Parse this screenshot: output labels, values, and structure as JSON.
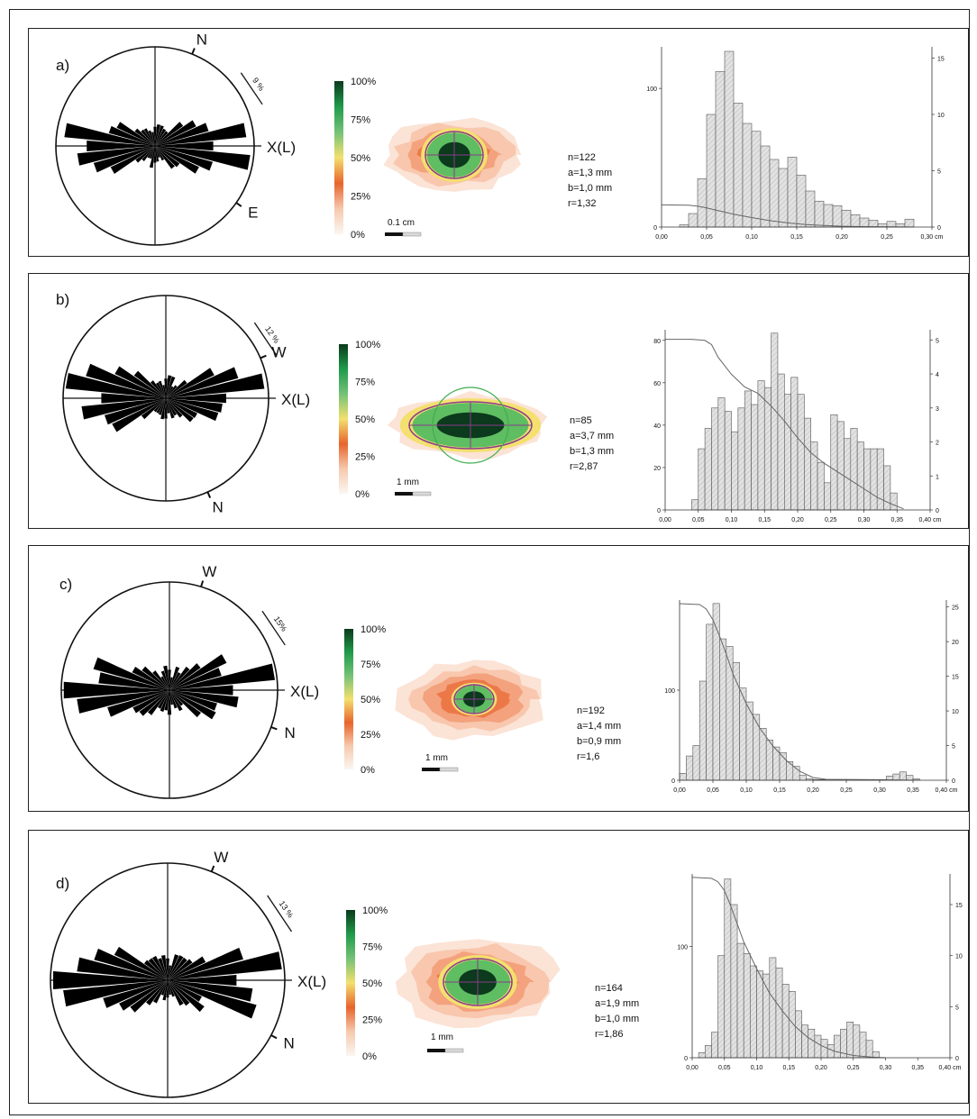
{
  "colors": {
    "ink": "#111111",
    "rose_fill": "#000000",
    "hist_fill": "#e2e2e2",
    "colorbar": [
      "#fbf6f2",
      "#f6c9ad",
      "#e8642d",
      "#f3e06e",
      "#74c277",
      "#1f9b4a",
      "#0b3a1c"
    ],
    "ellipse": "#8a3c8c",
    "circle": "#3fae4e"
  },
  "panels": [
    {
      "id": "a",
      "label": "a)",
      "rose": {
        "percent_label": "9 %",
        "axis_label": "X(L)",
        "dir_labels": [
          {
            "text": "N",
            "angle": 22
          },
          {
            "text": "E",
            "angle": 125
          }
        ]
      },
      "colorbar_labels": [
        "100%",
        "75%",
        "50%",
        "25%",
        "0%"
      ],
      "scale_label": "0.1 cm",
      "stats": [
        "n=122",
        "a=1,3 mm",
        "b=1,0 mm",
        "r=1,32"
      ],
      "chart_data": {
        "type": "bar",
        "xlabel": "cm",
        "x_ticks": [
          "0,00",
          "0,05",
          "0,10",
          "0,15",
          "0,20",
          "0,25",
          "0,30 cm"
        ],
        "x_range": [
          0,
          0.3
        ],
        "left_axis_ticks": [
          "0",
          "100"
        ],
        "left_range": [
          0,
          130
        ],
        "right_axis_ticks": [
          "0",
          "5",
          "10",
          "15"
        ],
        "right_range": [
          0,
          16
        ],
        "bin_width": 0.01,
        "bin_starts": [
          0.02,
          0.03,
          0.04,
          0.05,
          0.06,
          0.07,
          0.08,
          0.09,
          0.1,
          0.11,
          0.12,
          0.13,
          0.14,
          0.15,
          0.16,
          0.17,
          0.18,
          0.19,
          0.2,
          0.21,
          0.22,
          0.23,
          0.24,
          0.25,
          0.26,
          0.27
        ],
        "values": [
          0.2,
          1.2,
          4.3,
          10,
          13.8,
          15.6,
          11,
          9.2,
          8.5,
          7.2,
          6,
          5.2,
          6.2,
          4.6,
          3.2,
          2.3,
          2,
          1.9,
          1.5,
          1.1,
          0.8,
          0.6,
          0.3,
          0.5,
          0.3,
          0.7
        ],
        "curve": [
          [
            0.0,
            16
          ],
          [
            0.03,
            15.8
          ],
          [
            0.04,
            15
          ],
          [
            0.05,
            13.8
          ],
          [
            0.06,
            12.3
          ],
          [
            0.07,
            10.8
          ],
          [
            0.08,
            9.2
          ],
          [
            0.1,
            6.8
          ],
          [
            0.12,
            4.6
          ],
          [
            0.14,
            3.0
          ],
          [
            0.16,
            1.8
          ],
          [
            0.18,
            1.1
          ],
          [
            0.2,
            0.6
          ],
          [
            0.22,
            0.3
          ],
          [
            0.25,
            0.1
          ],
          [
            0.28,
            0.0
          ]
        ]
      }
    },
    {
      "id": "b",
      "label": "b)",
      "rose": {
        "percent_label": "12 %",
        "axis_label": "X(L)",
        "dir_labels": [
          {
            "text": "W",
            "angle": 67
          },
          {
            "text": "N",
            "angle": 156
          }
        ]
      },
      "colorbar_labels": [
        "100%",
        "75%",
        "50%",
        "25%",
        "0%"
      ],
      "scale_label": "1 mm",
      "stats": [
        "n=85",
        "a=3,7 mm",
        "b=1,3 mm",
        "r=2,87"
      ],
      "chart_data": {
        "type": "bar",
        "xlabel": "cm",
        "x_ticks": [
          "0,00",
          "0,05",
          "0,10",
          "0,15",
          "0,20",
          "0,25",
          "0,30",
          "0,35",
          "0,40 cm"
        ],
        "x_range": [
          0,
          0.4
        ],
        "left_axis_ticks": [
          "0",
          "20",
          "40",
          "60",
          "80"
        ],
        "left_range": [
          0,
          85
        ],
        "right_axis_ticks": [
          "0",
          "1",
          "2",
          "3",
          "4",
          "5"
        ],
        "right_range": [
          0,
          5.3
        ],
        "bin_width": 0.01,
        "bin_starts": [
          0.04,
          0.05,
          0.06,
          0.07,
          0.08,
          0.09,
          0.1,
          0.11,
          0.12,
          0.13,
          0.14,
          0.15,
          0.16,
          0.17,
          0.18,
          0.19,
          0.2,
          0.21,
          0.22,
          0.23,
          0.24,
          0.25,
          0.26,
          0.27,
          0.28,
          0.29,
          0.3,
          0.31,
          0.32,
          0.33,
          0.34
        ],
        "values": [
          0.3,
          1.8,
          2.4,
          3.0,
          3.3,
          2.9,
          2.3,
          3.0,
          3.5,
          3.1,
          3.8,
          3.6,
          5.2,
          4.0,
          3.4,
          3.9,
          3.4,
          2.7,
          2.0,
          1.4,
          0.8,
          2.8,
          2.6,
          2.1,
          2.4,
          2.0,
          1.8,
          1.8,
          1.8,
          1.3,
          0.5
        ],
        "curve": [
          [
            0.0,
            80.5
          ],
          [
            0.04,
            80.5
          ],
          [
            0.06,
            80
          ],
          [
            0.07,
            78
          ],
          [
            0.08,
            72
          ],
          [
            0.1,
            64
          ],
          [
            0.12,
            58
          ],
          [
            0.14,
            55
          ],
          [
            0.16,
            49
          ],
          [
            0.18,
            42
          ],
          [
            0.2,
            34
          ],
          [
            0.22,
            27
          ],
          [
            0.24,
            22
          ],
          [
            0.26,
            18
          ],
          [
            0.28,
            14
          ],
          [
            0.3,
            10
          ],
          [
            0.32,
            6
          ],
          [
            0.34,
            3
          ],
          [
            0.36,
            0.5
          ]
        ]
      }
    },
    {
      "id": "c",
      "label": "c)",
      "rose": {
        "percent_label": "15%",
        "axis_label": "X(L)",
        "dir_labels": [
          {
            "text": "W",
            "angle": 17
          },
          {
            "text": "N",
            "angle": 110
          }
        ]
      },
      "colorbar_labels": [
        "100%",
        "75%",
        "50%",
        "25%",
        "0%"
      ],
      "scale_label": "1 mm",
      "stats": [
        "n=192",
        "a=1,4 mm",
        "b=0,9 mm",
        "r=1,6"
      ],
      "chart_data": {
        "type": "bar",
        "xlabel": "cm",
        "x_ticks": [
          "0,00",
          "0,05",
          "0,10",
          "0,15",
          "0,20",
          "0,25",
          "0,30",
          "0,35",
          "0,40 cm"
        ],
        "x_range": [
          0,
          0.4
        ],
        "left_axis_ticks": [
          "0",
          "100"
        ],
        "left_range": [
          0,
          200
        ],
        "right_axis_ticks": [
          "0",
          "5",
          "10",
          "15",
          "20",
          "25"
        ],
        "right_range": [
          0,
          26
        ],
        "bin_width": 0.01,
        "bin_starts": [
          0.0,
          0.01,
          0.02,
          0.03,
          0.04,
          0.05,
          0.06,
          0.07,
          0.08,
          0.09,
          0.1,
          0.11,
          0.12,
          0.13,
          0.14,
          0.15,
          0.16,
          0.17,
          0.18,
          0.19,
          0.2,
          0.21,
          0.22,
          0.23,
          0.24,
          0.25,
          0.26,
          0.27,
          0.28,
          0.29,
          0.3,
          0.31,
          0.32,
          0.33,
          0.34,
          0.35
        ],
        "values": [
          1,
          3.5,
          5,
          14.3,
          22.5,
          25.5,
          20.4,
          19.3,
          17,
          13.3,
          11.3,
          9.5,
          7.5,
          5.8,
          4.8,
          4,
          2.7,
          2,
          0.7,
          0.2,
          0.1,
          0.1,
          0.1,
          0.1,
          0.1,
          0.1,
          0.1,
          0.1,
          0.1,
          0.1,
          0.1,
          0.6,
          0.9,
          1.2,
          0.7,
          0.2
        ],
        "curve": [
          [
            0.0,
            196
          ],
          [
            0.03,
            195
          ],
          [
            0.04,
            190
          ],
          [
            0.05,
            178
          ],
          [
            0.06,
            160
          ],
          [
            0.07,
            140
          ],
          [
            0.08,
            118
          ],
          [
            0.1,
            85
          ],
          [
            0.12,
            58
          ],
          [
            0.14,
            38
          ],
          [
            0.16,
            22
          ],
          [
            0.18,
            10
          ],
          [
            0.2,
            3
          ],
          [
            0.22,
            1
          ],
          [
            0.3,
            0.5
          ],
          [
            0.36,
            0
          ]
        ]
      }
    },
    {
      "id": "d",
      "label": "d)",
      "rose": {
        "percent_label": "13 %",
        "axis_label": "X(L)",
        "dir_labels": [
          {
            "text": "W",
            "angle": 22
          },
          {
            "text": "N",
            "angle": 118
          }
        ]
      },
      "colorbar_labels": [
        "100%",
        "75%",
        "50%",
        "25%",
        "0%"
      ],
      "scale_label": "1 mm",
      "stats": [
        "n=164",
        "a=1,9 mm",
        "b=1,0 mm",
        "r=1,86"
      ],
      "chart_data": {
        "type": "bar",
        "xlabel": "cm",
        "x_ticks": [
          "0,00",
          "0,05",
          "0,10",
          "0,15",
          "0,20",
          "0,25",
          "0,30",
          "0,35",
          "0,40 cm"
        ],
        "x_range": [
          0,
          0.4
        ],
        "left_axis_ticks": [
          "0",
          "100"
        ],
        "left_range": [
          0,
          165
        ],
        "right_axis_ticks": [
          "0",
          "5",
          "10",
          "15"
        ],
        "right_range": [
          0,
          18
        ],
        "bin_width": 0.01,
        "bin_starts": [
          0.01,
          0.02,
          0.03,
          0.04,
          0.05,
          0.06,
          0.07,
          0.08,
          0.09,
          0.1,
          0.11,
          0.12,
          0.13,
          0.14,
          0.15,
          0.16,
          0.17,
          0.18,
          0.19,
          0.2,
          0.21,
          0.22,
          0.23,
          0.24,
          0.25,
          0.26,
          0.27,
          0.28
        ],
        "values": [
          0.5,
          1.2,
          2.5,
          10,
          17.5,
          15,
          11.2,
          10.2,
          9,
          8.5,
          8.2,
          9.8,
          8.8,
          7.2,
          6.5,
          4.6,
          3.2,
          2.8,
          2.2,
          1.8,
          1.3,
          2.2,
          2.8,
          3.5,
          3.2,
          2.5,
          1.7,
          0.6
        ],
        "curve": [
          [
            0.0,
            162
          ],
          [
            0.03,
            161
          ],
          [
            0.04,
            158
          ],
          [
            0.05,
            150
          ],
          [
            0.06,
            136
          ],
          [
            0.07,
            120
          ],
          [
            0.08,
            104
          ],
          [
            0.1,
            80
          ],
          [
            0.12,
            58
          ],
          [
            0.14,
            42
          ],
          [
            0.16,
            28
          ],
          [
            0.18,
            18
          ],
          [
            0.2,
            11
          ],
          [
            0.22,
            6
          ],
          [
            0.25,
            2
          ],
          [
            0.28,
            0.5
          ],
          [
            0.3,
            0
          ]
        ]
      }
    }
  ]
}
